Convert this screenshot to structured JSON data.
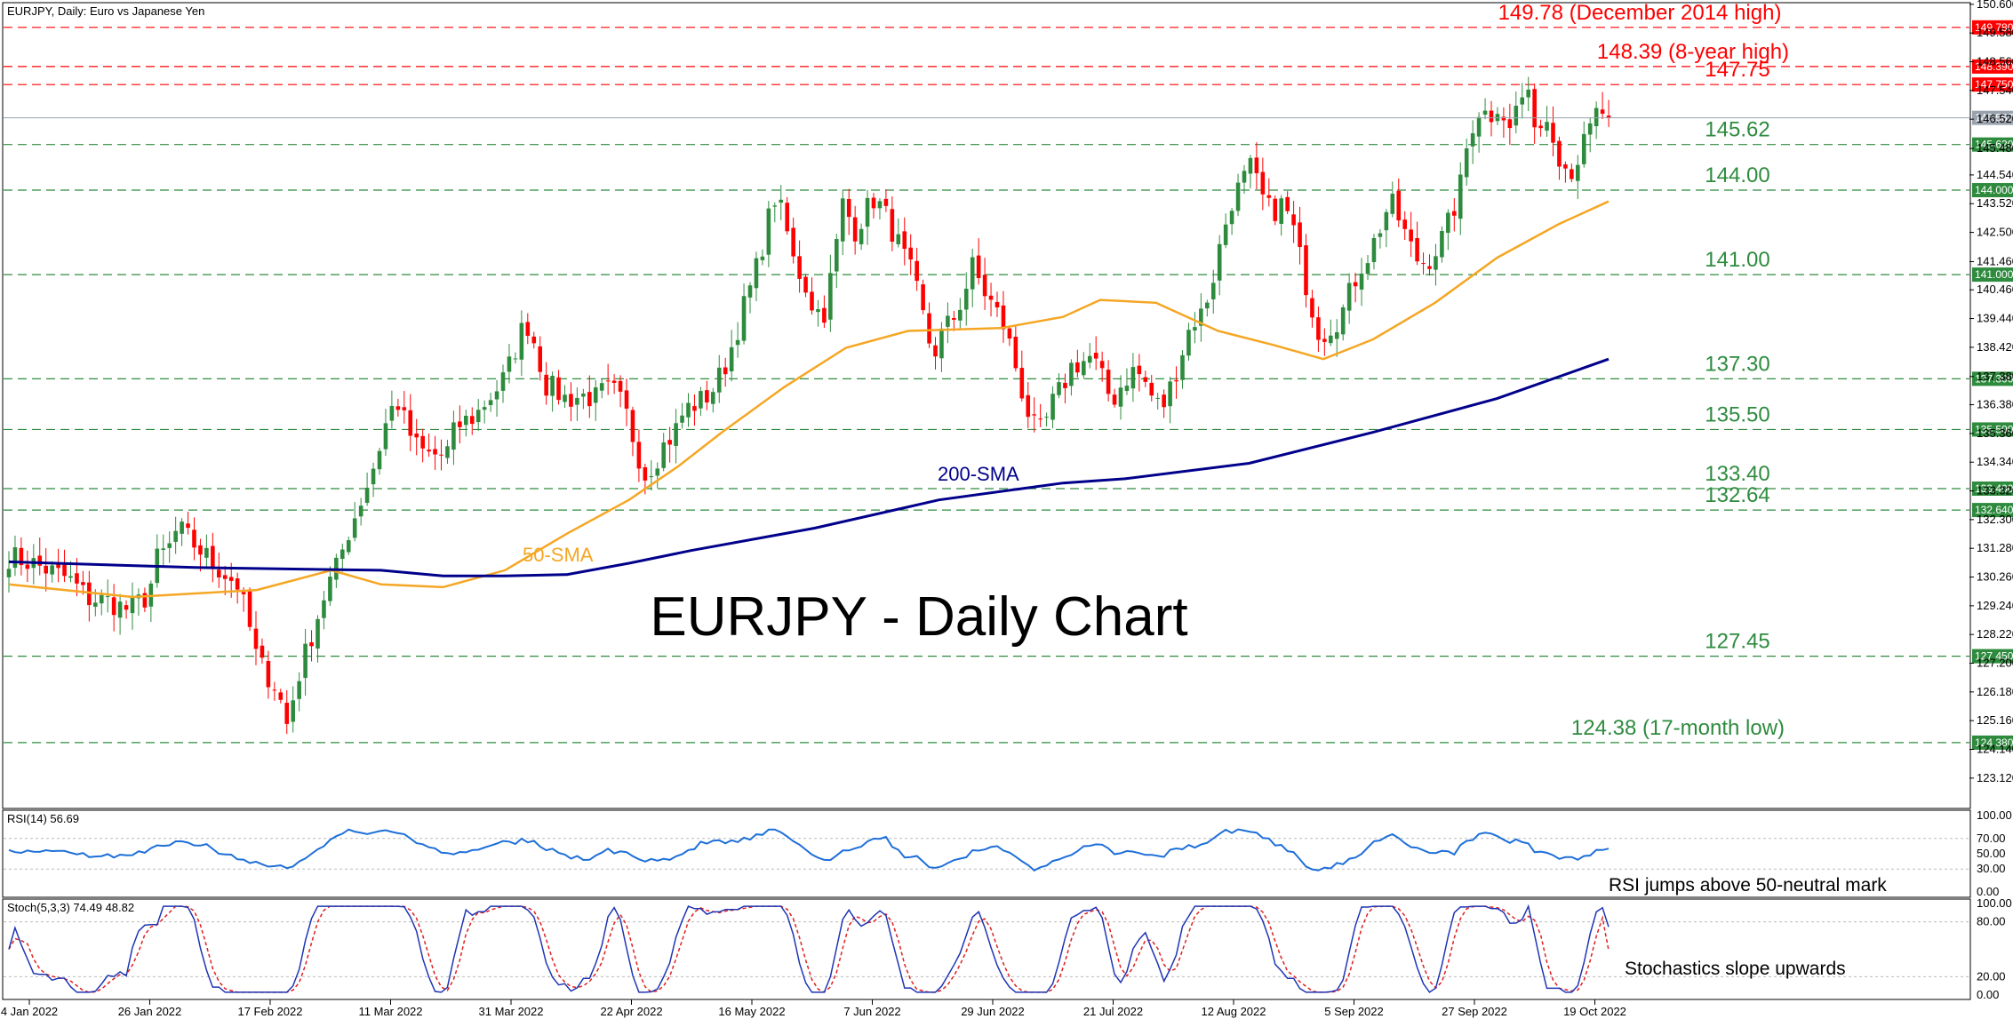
{
  "header": {
    "symbol_info": "EURJPY, Daily:  Euro vs Japanese Yen"
  },
  "chart_data": [
    {
      "type": "candlestick",
      "title": "EURJPY - Daily Chart",
      "ylim": [
        122.2,
        150.5
      ],
      "price_axis_ticks": [
        "150.600",
        "149.580",
        "148.560",
        "147.540",
        "146.520",
        "145.480",
        "144.540",
        "143.520",
        "142.500",
        "141.460",
        "140.460",
        "139.440",
        "138.420",
        "137.380",
        "136.380",
        "135.360",
        "134.340",
        "133.320",
        "132.300",
        "131.280",
        "130.260",
        "129.240",
        "128.220",
        "127.200",
        "126.180",
        "125.160",
        "124.140",
        "123.120"
      ],
      "x_tick_labels": [
        "4 Jan 2022",
        "26 Jan 2022",
        "17 Feb 2022",
        "11 Mar 2022",
        "31 Mar 2022",
        "22 Apr 2022",
        "16 May 2022",
        "7 Jun 2022",
        "29 Jun 2022",
        "21 Jul 2022",
        "12 Aug 2022",
        "5 Sep 2022",
        "27 Sep 2022",
        "19 Oct 2022"
      ],
      "current_price": {
        "value": 146.567,
        "tag": "146.567"
      },
      "levels": [
        {
          "value": 149.78,
          "label": "149.78 (December 2014 high)",
          "tag": "149.780",
          "color": "#ff0000"
        },
        {
          "value": 148.39,
          "label": "148.39 (8-year high)",
          "tag": "148.390",
          "color": "#ff0000"
        },
        {
          "value": 147.75,
          "label": "147.75",
          "tag": "147.750",
          "color": "#ff0000"
        },
        {
          "value": 145.62,
          "label": "145.62",
          "tag": "145.620",
          "color": "#2e8b3e"
        },
        {
          "value": 144.0,
          "label": "144.00",
          "tag": "144.000",
          "color": "#2e8b3e"
        },
        {
          "value": 141.0,
          "label": "141.00",
          "tag": "141.000",
          "color": "#2e8b3e"
        },
        {
          "value": 137.3,
          "label": "137.30",
          "tag": "137.300",
          "color": "#2e8b3e"
        },
        {
          "value": 135.5,
          "label": "135.50",
          "tag": "135.500",
          "color": "#2e8b3e"
        },
        {
          "value": 133.4,
          "label": "133.40",
          "tag": "133.400",
          "color": "#2e8b3e"
        },
        {
          "value": 132.64,
          "label": "132.64",
          "tag": "132.640",
          "color": "#2e8b3e"
        },
        {
          "value": 127.45,
          "label": "127.45",
          "tag": "127.450",
          "color": "#2e8b3e"
        },
        {
          "value": 124.38,
          "label": "124.38 (17-month low)",
          "tag": "124.380",
          "color": "#2e8b3e"
        }
      ],
      "sma50": {
        "label": "50-SMA",
        "color": "#f5a623",
        "points": [
          [
            0,
            130.0
          ],
          [
            20,
            129.55
          ],
          [
            40,
            129.8
          ],
          [
            52,
            130.5
          ],
          [
            60,
            130.0
          ],
          [
            70,
            129.9
          ],
          [
            80,
            130.5
          ],
          [
            90,
            131.8
          ],
          [
            100,
            133.0
          ],
          [
            108,
            134.2
          ],
          [
            115,
            135.4
          ],
          [
            125,
            137.0
          ],
          [
            135,
            138.4
          ],
          [
            145,
            139.0
          ],
          [
            160,
            139.1
          ],
          [
            170,
            139.5
          ],
          [
            176,
            140.1
          ],
          [
            185,
            140.0
          ],
          [
            195,
            139.0
          ],
          [
            204,
            138.5
          ],
          [
            212,
            138.0
          ],
          [
            220,
            138.7
          ],
          [
            230,
            140.0
          ],
          [
            240,
            141.6
          ],
          [
            250,
            142.8
          ],
          [
            258,
            143.6
          ]
        ]
      },
      "sma200": {
        "label": "200-SMA",
        "color": "#00008b",
        "points": [
          [
            0,
            130.8
          ],
          [
            30,
            130.6
          ],
          [
            60,
            130.5
          ],
          [
            70,
            130.3
          ],
          [
            80,
            130.3
          ],
          [
            90,
            130.35
          ],
          [
            100,
            130.75
          ],
          [
            110,
            131.2
          ],
          [
            130,
            132.0
          ],
          [
            150,
            133.0
          ],
          [
            170,
            133.6
          ],
          [
            180,
            133.75
          ],
          [
            200,
            134.3
          ],
          [
            220,
            135.4
          ],
          [
            240,
            136.6
          ],
          [
            258,
            138.0
          ]
        ]
      },
      "candles_source": "daily OHLC estimated from the plotted price path"
    },
    {
      "type": "line",
      "name": "RSI(14) 56.69",
      "ylim": [
        0,
        100
      ],
      "ticks": [
        "100.00",
        "70.00",
        "50.00",
        "30.00",
        "0.00"
      ],
      "annotation": "RSI jumps above 50-neutral mark",
      "line_color": "#1e6fd9"
    },
    {
      "type": "line",
      "name": "Stoch(5,3,3) 74.49 48.82",
      "ylim": [
        0,
        100
      ],
      "ticks": [
        "100.00",
        "80.00",
        "20.00",
        "0.00"
      ],
      "annotation": "Stochastics slope upwards",
      "main_color": "#1f35b3",
      "signal_color": "#e02020"
    }
  ],
  "colors": {
    "bull": "#2e8b3e",
    "bear": "#ff0000",
    "level_green": "#2e8b3e",
    "level_red": "#ff0000"
  }
}
